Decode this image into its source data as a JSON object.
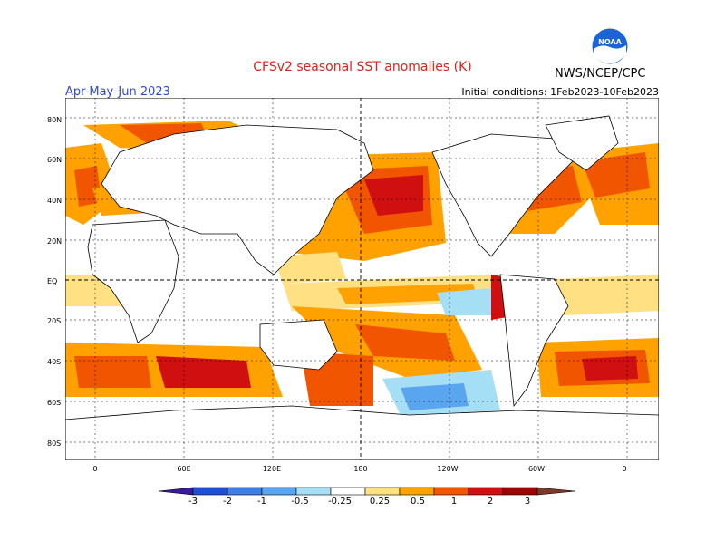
{
  "header": {
    "title": "CFSv2 seasonal SST anomalies (K)",
    "period": "Apr-May-Jun 2023",
    "initial_conditions": "Initial conditions: 1Feb2023-10Feb2023",
    "agency": "NWS/NCEP/CPC",
    "logo_text": "NOAA"
  },
  "axes": {
    "lat_labels": [
      "80N",
      "60N",
      "40N",
      "20N",
      "EQ",
      "20S",
      "40S",
      "60S",
      "80S"
    ],
    "lon_labels": [
      "0",
      "60E",
      "120E",
      "180",
      "120W",
      "60W",
      "0"
    ]
  },
  "colorbar": {
    "labels": [
      "-3",
      "-2",
      "-1",
      "-0.5",
      "-0.25",
      "0.25",
      "0.5",
      "1",
      "2",
      "3"
    ],
    "colors": [
      "#3a1a9c",
      "#1f4fd4",
      "#3c7fe6",
      "#5aa5f0",
      "#a5dff5",
      "#ffffff",
      "#ffe082",
      "#ffa200",
      "#f25500",
      "#d01010",
      "#a00000",
      "#7a3a2a"
    ]
  },
  "colors": {
    "ocean_warm_light": "#ffe082",
    "ocean_warm": "#ffa200",
    "ocean_hot": "#f25500",
    "ocean_very_hot": "#d01010",
    "ocean_cool": "#a5dff5",
    "ocean_cold": "#5aa5f0",
    "land": "#ffffff",
    "coast": "#000000"
  }
}
